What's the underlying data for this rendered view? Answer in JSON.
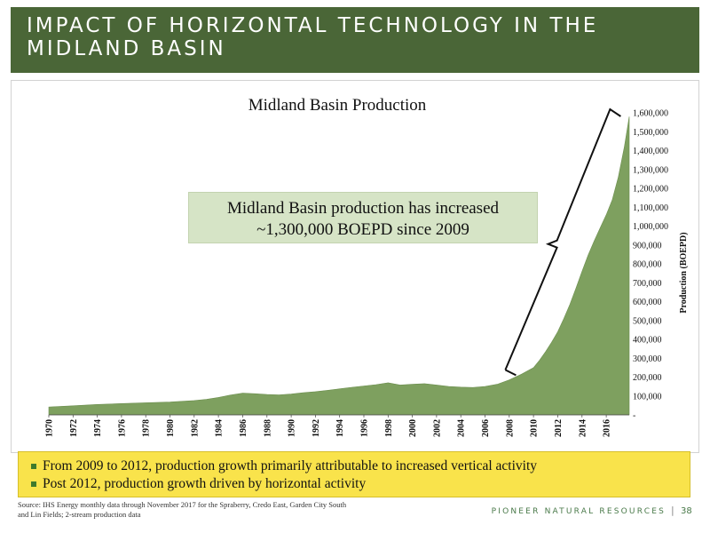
{
  "header": {
    "title": "IMPACT OF HORIZONTAL TECHNOLOGY IN THE MIDLAND BASIN"
  },
  "callout": {
    "line1": "Midland Basin production has increased",
    "line2": "~1,300,000 BOEPD since 2009"
  },
  "bullets": [
    "From 2009 to 2012, production growth primarily attributable to increased vertical activity",
    "Post 2012, production growth driven by horizontal activity"
  ],
  "source": {
    "line1": "Source: IHS Energy monthly data through November 2017 for the Spraberry, Credo East, Garden City South",
    "line2": "and Lin Fields; 2-stream production data"
  },
  "footer": {
    "company": "PIONEER NATURAL RESOURCES",
    "separator": "|",
    "page": "38"
  },
  "colors": {
    "header_bg": "#4a6637",
    "area_fill": "#7ea05f",
    "callout_bg": "#d6e4c6",
    "bullet_box_bg": "#f9e34b",
    "bullet_marker": "#3f7a2c"
  },
  "chart_data": {
    "type": "area",
    "title": "Midland Basin Production",
    "xlabel": "",
    "ylabel": "Production (BOEPD)",
    "ylim": [
      0,
      1600000
    ],
    "xlim": [
      1970,
      2017.9
    ],
    "grid": false,
    "y_axis_side": "right",
    "x_tick_labels": [
      "1970",
      "1972",
      "1974",
      "1976",
      "1978",
      "1980",
      "1982",
      "1984",
      "1986",
      "1988",
      "1990",
      "1992",
      "1994",
      "1996",
      "1998",
      "2000",
      "2002",
      "2004",
      "2006",
      "2008",
      "2010",
      "2012",
      "2014",
      "2016"
    ],
    "y_tick_labels": [
      "-",
      "100,000",
      "200,000",
      "300,000",
      "400,000",
      "500,000",
      "600,000",
      "700,000",
      "800,000",
      "900,000",
      "1,000,000",
      "1,100,000",
      "1,200,000",
      "1,300,000",
      "1,400,000",
      "1,500,000",
      "1,600,000"
    ],
    "series": [
      {
        "x": [
          1970,
          1972,
          1974,
          1976,
          1978,
          1980,
          1982,
          1983,
          1984,
          1985,
          1986,
          1987,
          1988,
          1989,
          1990,
          1991,
          1992,
          1993,
          1994,
          1995,
          1996,
          1997,
          1998,
          1999,
          2000,
          2001,
          2002,
          2003,
          2004,
          2005,
          2006,
          2007,
          2008,
          2009,
          2010,
          2010.5,
          2011,
          2011.5,
          2012,
          2012.5,
          2013,
          2013.5,
          2014,
          2014.5,
          2015,
          2015.5,
          2016,
          2016.5,
          2017,
          2017.5,
          2017.9
        ],
        "values": [
          42000,
          48000,
          55000,
          60000,
          64000,
          68000,
          76000,
          82000,
          92000,
          105000,
          115000,
          112000,
          108000,
          106000,
          110000,
          117000,
          123000,
          130000,
          138000,
          146000,
          153000,
          160000,
          170000,
          158000,
          162000,
          165000,
          158000,
          150000,
          147000,
          145000,
          150000,
          162000,
          185000,
          215000,
          250000,
          290000,
          335000,
          385000,
          440000,
          510000,
          585000,
          670000,
          760000,
          845000,
          920000,
          990000,
          1060000,
          1140000,
          1260000,
          1420000,
          1580000
        ]
      }
    ],
    "annotations": [
      "Midland Basin production has increased ~1,300,000 BOEPD since 2009"
    ]
  }
}
